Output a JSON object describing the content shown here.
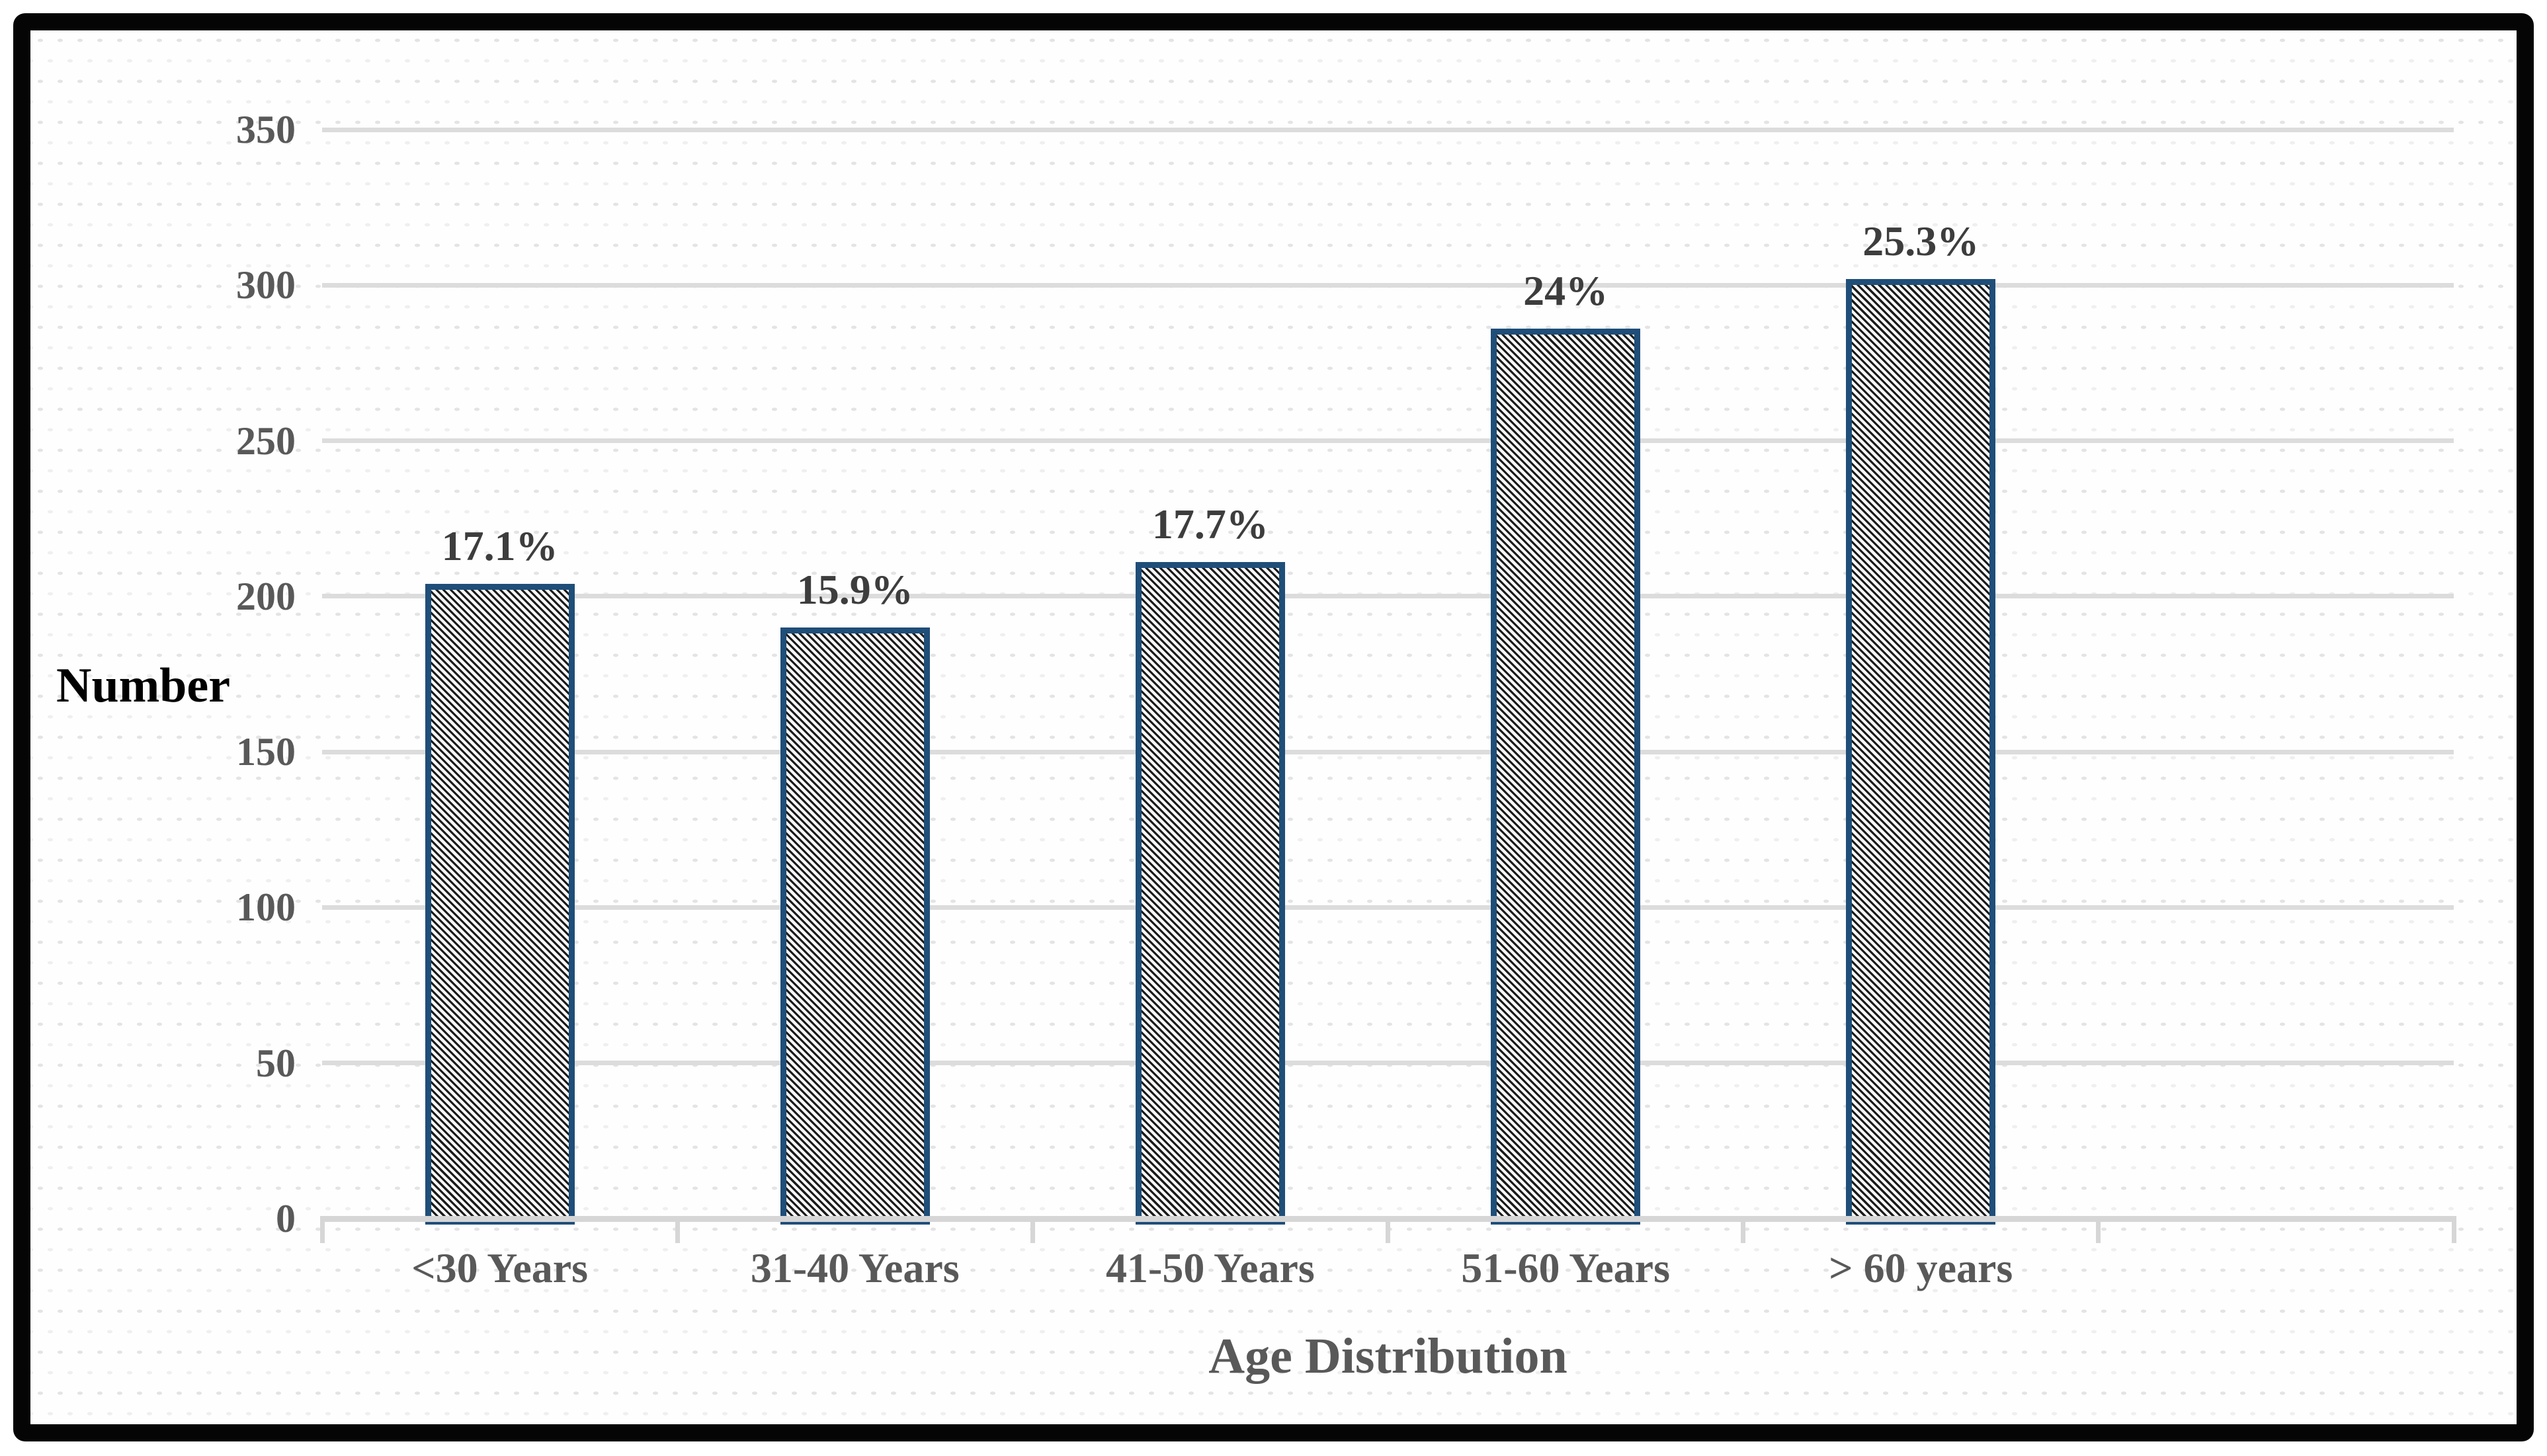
{
  "chart_data": {
    "type": "bar",
    "title": "",
    "xlabel": "Age Distribution",
    "ylabel": "Number",
    "categories": [
      "<30 Years",
      "31-40 Years",
      "41-50 Years",
      "51-60 Years",
      "> 60 years"
    ],
    "values": [
      204,
      190,
      211,
      286,
      302
    ],
    "bar_labels": [
      "17.1%",
      "15.9%",
      "17.7%",
      "24%",
      "25.3%"
    ],
    "y_ticks": [
      0,
      50,
      100,
      150,
      200,
      250,
      300,
      350
    ],
    "ylim": [
      0,
      350
    ],
    "x_slots": 6,
    "grid": "horizontal gridlines on, light gray",
    "legend": "none",
    "bar_fill": "diagonal hatch stripes, backslash direction",
    "colors": {
      "frame": "#050505",
      "bar_border": "#1F4E79",
      "bar_hatch": "#1b1b1b",
      "bar_background": "#f8f8f8",
      "gridline": "#dcdcdc",
      "axis_line": "#d6d6d6",
      "tick_label": "#595959",
      "category_label": "#595959",
      "data_label": "#3d3d3d",
      "y_title": "#000000",
      "x_title": "#595959",
      "dot_texture_dark": "#e4e4e4",
      "dot_texture_light": "#efefef"
    }
  }
}
